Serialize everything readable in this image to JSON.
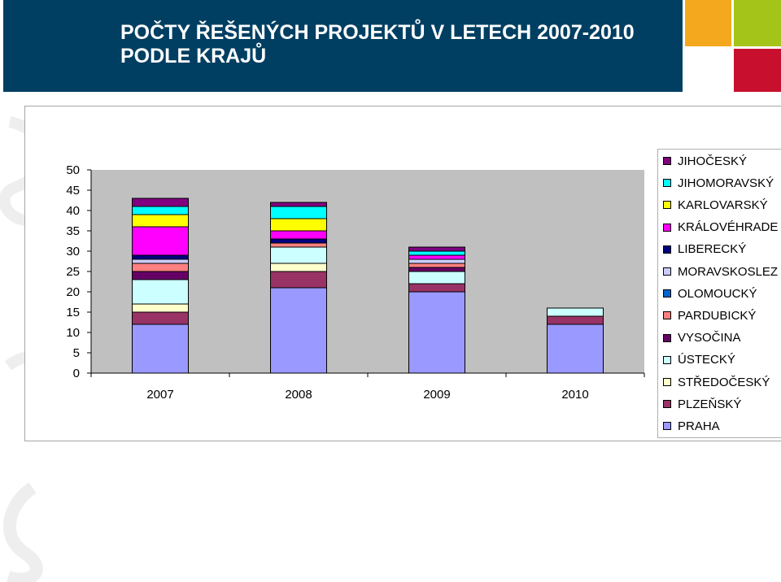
{
  "header": {
    "title_line1": "POČTY ŘEŠENÝCH PROJEKTŮ V LETECH 2007-2010",
    "title_line2": "PODLE KRAJŮ",
    "bg_color": "#003f62",
    "tile_colors": [
      "#f4a81d",
      "#a5c41a",
      "#c8102e",
      "#b7cf2a"
    ]
  },
  "chart_data": {
    "type": "bar",
    "stacked": true,
    "categories": [
      "2007",
      "2008",
      "2009",
      "2010"
    ],
    "ylim": [
      0,
      50
    ],
    "yticks": [
      "0",
      "5",
      "10",
      "15",
      "20",
      "25",
      "30",
      "35",
      "40",
      "45",
      "50"
    ],
    "plot_bg": "#c0c0c0",
    "series": [
      {
        "name": "PRAHA",
        "color": "#9999ff",
        "values": [
          12,
          21,
          20,
          12
        ]
      },
      {
        "name": "PLZEŇSKÝ",
        "color": "#993366",
        "values": [
          3,
          4,
          2,
          2
        ]
      },
      {
        "name": "STŘEDOČESKÝ",
        "color": "#ffffcc",
        "values": [
          2,
          2,
          0,
          0
        ]
      },
      {
        "name": "ÚSTECKÝ",
        "color": "#ccffff",
        "values": [
          6,
          4,
          3,
          2
        ]
      },
      {
        "name": "VYSOČINA",
        "color": "#660066",
        "values": [
          2,
          0,
          1,
          0
        ]
      },
      {
        "name": "PARDUBICKÝ",
        "color": "#ff8080",
        "values": [
          2,
          1,
          1,
          0
        ]
      },
      {
        "name": "OLOMOUCKÝ",
        "color": "#0066cc",
        "values": [
          0,
          0,
          0,
          0
        ]
      },
      {
        "name": "MORAVSKOSLEZ",
        "color": "#ccccff",
        "values": [
          1,
          0,
          1,
          0
        ]
      },
      {
        "name": "LIBERECKÝ",
        "color": "#000080",
        "values": [
          1,
          1,
          0,
          0
        ]
      },
      {
        "name": "KRÁLOVÉHRADE",
        "color": "#ff00ff",
        "values": [
          7,
          2,
          1,
          0
        ]
      },
      {
        "name": "KARLOVARSKÝ",
        "color": "#ffff00",
        "values": [
          3,
          3,
          0,
          0
        ]
      },
      {
        "name": "JIHOMORAVSKÝ",
        "color": "#00ffff",
        "values": [
          2,
          3,
          1,
          0
        ]
      },
      {
        "name": "JIHOČESKÝ",
        "color": "#800080",
        "values": [
          2,
          1,
          1,
          0
        ]
      }
    ],
    "legend_position": "right"
  }
}
